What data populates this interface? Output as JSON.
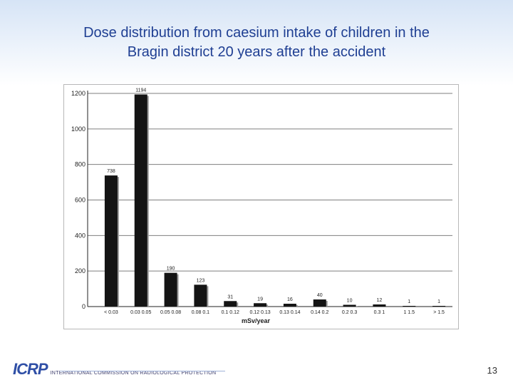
{
  "slide": {
    "title_line1": "Dose distribution from caesium intake of children in the",
    "title_line2": "Bragin district 20 years after the accident",
    "page_number": "13"
  },
  "footer": {
    "logo_mark": "ICRP",
    "logo_text": "INTERNATIONAL COMMISSION ON RADIOLOGICAL PROTECTION"
  },
  "colors": {
    "title": "#1f3f93",
    "bar": "#141414",
    "bar_shadow": "#9a9a9a",
    "grid": "#7f7f7f"
  },
  "chart_data": {
    "type": "bar",
    "title": "",
    "xlabel": "mSv/year",
    "ylabel": "",
    "ylim": [
      0,
      1200
    ],
    "yticks": [
      0,
      200,
      400,
      600,
      800,
      1000,
      1200
    ],
    "grid": true,
    "categories": [
      "< 0.03",
      "0.03 0.05",
      "0.05 0.08",
      "0.08 0.1",
      "0.1 0.12",
      "0.12 0.13",
      "0.13 0.14",
      "0.14 0.2",
      "0.2 0.3",
      "0.3 1",
      "1 1.5",
      "> 1.5"
    ],
    "values": [
      738,
      1194,
      190,
      123,
      31,
      19,
      16,
      40,
      10,
      12,
      1,
      1
    ]
  }
}
